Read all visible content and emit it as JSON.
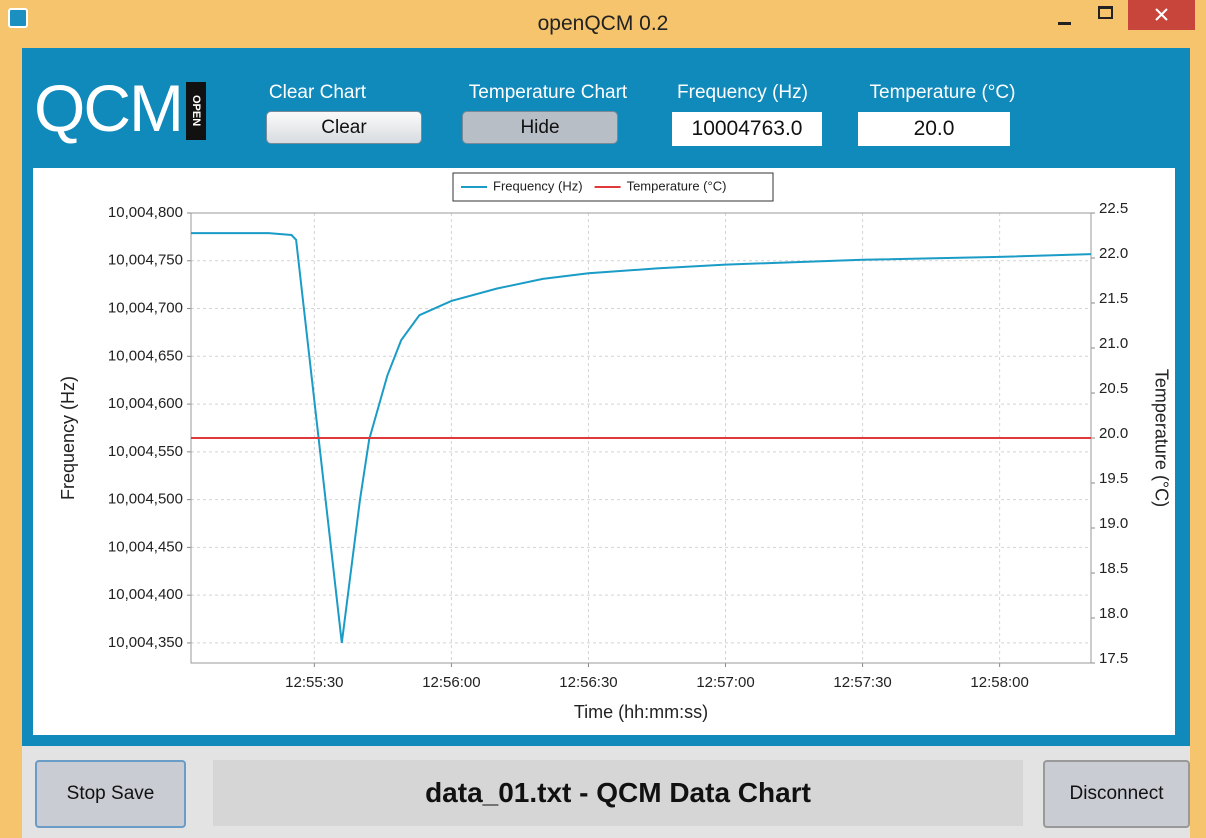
{
  "window": {
    "title": "openQCM 0.2"
  },
  "header": {
    "logo": "QCM",
    "logo_badge": "OPEN",
    "clear_chart_label": "Clear Chart",
    "clear_button": "Clear",
    "temperature_chart_label": "Temperature Chart",
    "hide_button": "Hide",
    "frequency_label": "Frequency (Hz)",
    "frequency_value": "10004763.0",
    "temperature_label": "Temperature (°C)",
    "temperature_value": "20.0"
  },
  "chart_data": {
    "type": "line",
    "xlabel": "Time (hh:mm:ss)",
    "ylabel": "Frequency (Hz)",
    "y2label": "Temperature (°C)",
    "x": [
      "12:55:03",
      "12:55:20",
      "12:55:25",
      "12:55:26",
      "12:55:36",
      "12:55:40",
      "12:55:42",
      "12:55:46",
      "12:55:49",
      "12:55:53",
      "12:56:00",
      "12:56:10",
      "12:56:20",
      "12:56:30",
      "12:56:45",
      "12:57:00",
      "12:57:30",
      "12:58:00",
      "12:58:20"
    ],
    "series": [
      {
        "name": "Frequency (Hz)",
        "color": "#1a9cc6",
        "values": [
          10004779,
          10004779,
          10004777,
          10004772,
          10004350,
          10004500,
          10004563,
          10004630,
          10004667,
          10004693,
          10004708,
          10004721,
          10004731,
          10004737,
          10004742,
          10004746,
          10004751,
          10004754,
          10004757
        ]
      },
      {
        "name": "Temperature (°C)",
        "color": "#e0393c",
        "axis": "y2",
        "values": [
          20,
          20,
          20,
          20,
          20,
          20,
          20,
          20,
          20,
          20,
          20,
          20,
          20,
          20,
          20,
          20,
          20,
          20,
          20
        ]
      }
    ],
    "xlim": [
      "12:55:03",
      "12:58:20"
    ],
    "xticks": [
      "12:55:30",
      "12:56:00",
      "12:56:30",
      "12:57:00",
      "12:57:30",
      "12:58:00"
    ],
    "ylim": [
      10004329,
      10004800
    ],
    "yticks": [
      {
        "value": 10004350,
        "label": "10,004,350"
      },
      {
        "value": 10004400,
        "label": "10,004,400"
      },
      {
        "value": 10004450,
        "label": "10,004,450"
      },
      {
        "value": 10004500,
        "label": "10,004,500"
      },
      {
        "value": 10004550,
        "label": "10,004,550"
      },
      {
        "value": 10004600,
        "label": "10,004,600"
      },
      {
        "value": 10004650,
        "label": "10,004,650"
      },
      {
        "value": 10004700,
        "label": "10,004,700"
      },
      {
        "value": 10004750,
        "label": "10,004,750"
      },
      {
        "value": 10004800,
        "label": "10,004,800"
      }
    ],
    "y2lim": [
      17.5,
      22.5
    ],
    "y2ticks": [
      17.5,
      {
        "value": 18,
        "label": "18.0"
      },
      18.5,
      {
        "value": 19,
        "label": "19.0"
      },
      19.5,
      {
        "value": 20,
        "label": "20.0"
      },
      20.5,
      {
        "value": 21,
        "label": "21.0"
      },
      21.5,
      {
        "value": 22,
        "label": "22.0"
      },
      22.5
    ],
    "grid": true,
    "legend": "top"
  },
  "footer": {
    "stop_button": "Stop Save",
    "file_label": "data_01.txt - QCM Data Chart",
    "disconnect_button": "Disconnect"
  }
}
